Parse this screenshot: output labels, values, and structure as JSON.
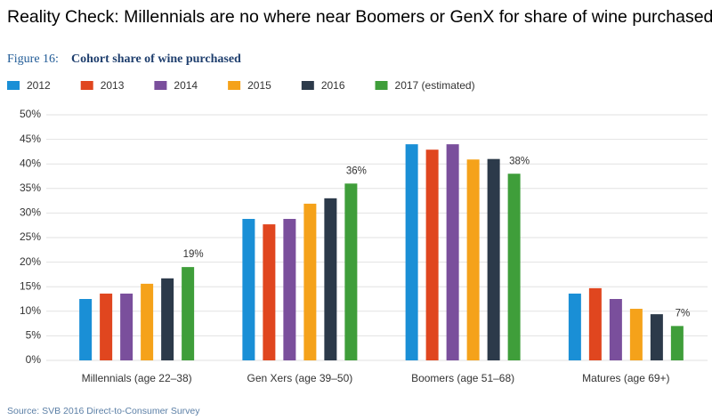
{
  "heading": "Reality Check: Millennials are no where near Boomers or GenX for share of wine purchased",
  "chart_data": {
    "type": "bar",
    "figure_label": "Figure 16:",
    "title": "Cohort share of wine purchased",
    "categories": [
      "Millennials (age 22–38)",
      "Gen Xers (age 39–50)",
      "Boomers (age 51–68)",
      "Matures (age 69+)"
    ],
    "series": [
      {
        "name": "2012",
        "color": "#1a8fd6",
        "values": [
          12.5,
          28.8,
          44,
          13.6
        ]
      },
      {
        "name": "2013",
        "color": "#e0461f",
        "values": [
          13.6,
          27.7,
          42.9,
          14.7
        ]
      },
      {
        "name": "2014",
        "color": "#7a4f9c",
        "values": [
          13.6,
          28.8,
          44,
          12.5
        ]
      },
      {
        "name": "2015",
        "color": "#f5a21a",
        "values": [
          15.6,
          31.9,
          40.9,
          10.5
        ]
      },
      {
        "name": "2016",
        "color": "#2c3a4a",
        "values": [
          16.7,
          33,
          41,
          9.4
        ]
      },
      {
        "name": "2017 (estimated)",
        "color": "#3f9e3a",
        "values": [
          19,
          36,
          38,
          7
        ],
        "value_labels": [
          "19%",
          "36%",
          "38%",
          "7%"
        ]
      }
    ],
    "ylim": [
      0,
      50
    ],
    "yticks": [
      {
        "value": 0,
        "label": "0%"
      },
      {
        "value": 5,
        "label": "5%"
      },
      {
        "value": 10,
        "label": "10%"
      },
      {
        "value": 15,
        "label": "15%"
      },
      {
        "value": 20,
        "label": "20%"
      },
      {
        "value": 25,
        "label": "25%"
      },
      {
        "value": 30,
        "label": "30%"
      },
      {
        "value": 35,
        "label": "35%"
      },
      {
        "value": 40,
        "label": "40%"
      },
      {
        "value": 45,
        "label": "45%"
      },
      {
        "value": 50,
        "label": "50%"
      }
    ],
    "grid": true,
    "source": "Source: SVB 2016 Direct-to-Consumer Survey"
  }
}
